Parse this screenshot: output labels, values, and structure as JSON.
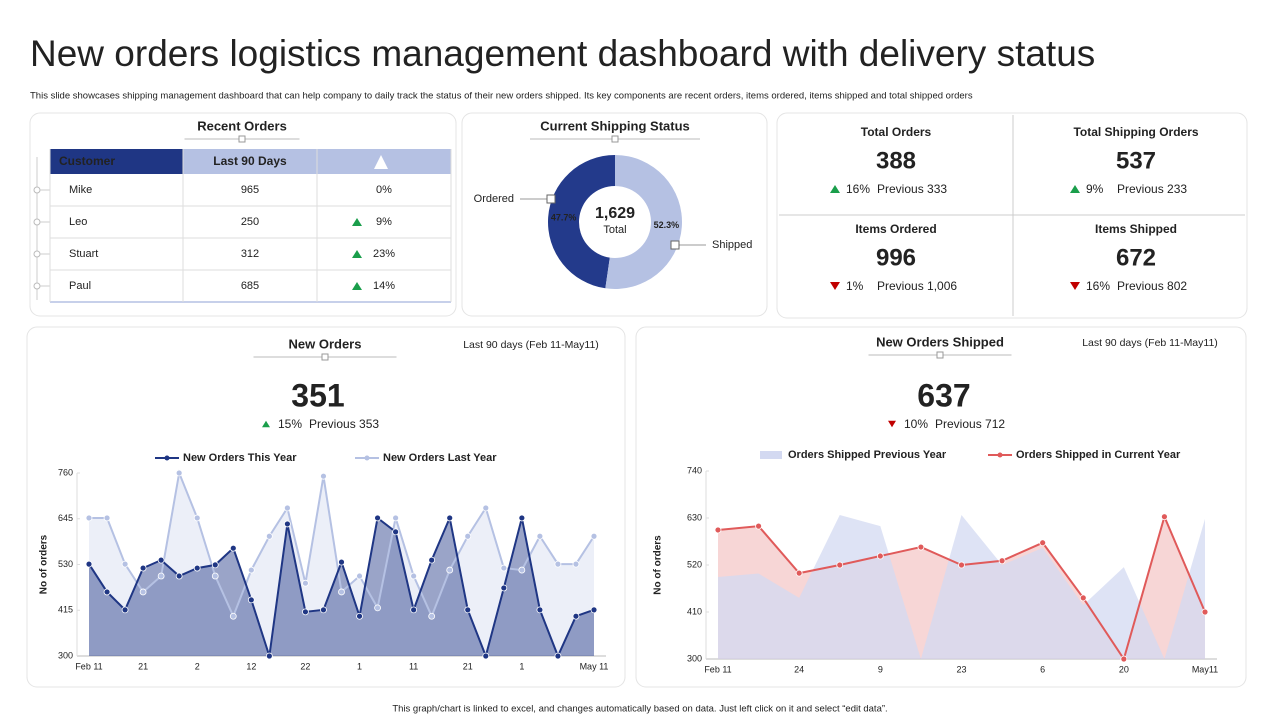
{
  "header": {
    "title": "New orders logistics management dashboard with delivery status",
    "subtitle": "This slide showcases shipping management dashboard that can help company to daily track the status of their new orders shipped. Its key components are recent orders, items ordered, items shipped and total shipped orders"
  },
  "recent_orders": {
    "title": "Recent Orders",
    "columns": [
      "Customer",
      "Last 90 Days"
    ],
    "rows": [
      {
        "customer": "Mike",
        "last_90_days": 965,
        "change": "0%"
      },
      {
        "customer": "Leo",
        "last_90_days": 250,
        "change": "9%",
        "trend": "up"
      },
      {
        "customer": "Stuart",
        "last_90_days": 312,
        "change": "23%",
        "trend": "up"
      },
      {
        "customer": "Paul",
        "last_90_days": 685,
        "change": "14%",
        "trend": "up"
      }
    ]
  },
  "kpis": [
    {
      "label": "Total Orders",
      "value": 388,
      "change": "16%",
      "trend": "up",
      "previous": "Previous 333"
    },
    {
      "label": "Total Shipping Orders",
      "value": 537,
      "change": "9%",
      "trend": "up",
      "previous": "Previous 233"
    },
    {
      "label": "Items Ordered",
      "value": 996,
      "change": "1%",
      "trend": "down",
      "previous": "Previous 1,006"
    },
    {
      "label": "Items Shipped",
      "value": 672,
      "change": "16%",
      "trend": "down",
      "previous": "Previous 802"
    }
  ],
  "chart_data": [
    {
      "type": "pie",
      "title": "Current Shipping Status",
      "donut": true,
      "categories": [
        "Ordered",
        "Shipped"
      ],
      "values": [
        47.7,
        52.3
      ],
      "value_labels": [
        "47.7%",
        "52.3%"
      ],
      "colors": [
        "#233a8b",
        "#b5c1e3"
      ],
      "center_label": "1,629",
      "center_sublabel": "Total"
    },
    {
      "type": "line",
      "title": "New Orders",
      "subtitle": "Last 90 days (Feb 11-May11)",
      "kpi_value": 351,
      "kpi_change": "15%",
      "kpi_trend": "up",
      "kpi_previous": "Previous 353",
      "ylabel": "No of orders",
      "categories": [
        "Feb 11",
        null,
        null,
        "21",
        null,
        null,
        "2",
        null,
        null,
        "12",
        null,
        null,
        "22",
        null,
        null,
        "1",
        null,
        null,
        "11",
        null,
        null,
        "21",
        null,
        null,
        "1",
        null,
        null,
        null,
        "May 11"
      ],
      "series": [
        {
          "name": "New Orders This Year",
          "color": "#1f3684",
          "style": "line",
          "values": [
            531,
            461,
            416,
            521,
            541,
            501,
            521,
            529,
            571,
            441,
            300,
            632,
            411,
            416,
            536,
            400,
            647,
            612,
            416,
            541,
            647,
            416,
            300,
            471,
            647,
            416,
            300,
            400,
            416
          ]
        },
        {
          "name": "New Orders Last Year",
          "color": "#b5c1e3",
          "style": "line",
          "values": [
            647,
            647,
            531,
            461,
            501,
            760,
            647,
            501,
            400,
            516,
            601,
            672,
            483,
            752,
            461,
            501,
            421,
            647,
            501,
            400,
            516,
            601,
            672,
            521,
            516,
            601,
            531,
            531,
            601
          ]
        }
      ],
      "ylim": [
        300,
        760
      ],
      "yticks": [
        300,
        415,
        530,
        645,
        760
      ]
    },
    {
      "type": "line",
      "title": "New Orders Shipped",
      "subtitle": "Last 90 days (Feb 11-May11)",
      "kpi_value": 637,
      "kpi_change": "10%",
      "kpi_trend": "down",
      "kpi_previous": "Previous 712",
      "ylabel": "No of orders",
      "categories": [
        "Feb 11",
        null,
        "24",
        null,
        "9",
        null,
        "23",
        null,
        "6",
        null,
        "20",
        null,
        "May11"
      ],
      "series": [
        {
          "name": "Orders Shipped Previous Year",
          "color": "#d3d9f1",
          "style": "area",
          "values": [
            492,
            500,
            443,
            637,
            611,
            300,
            637,
            520,
            560,
            426,
            515,
            300,
            628
          ]
        },
        {
          "name": "Orders Shipped in Current Year",
          "color": "#e05a5a",
          "style": "line",
          "values": [
            602,
            611,
            501,
            520,
            541,
            562,
            520,
            530,
            572,
            443,
            300,
            633,
            410
          ]
        }
      ],
      "ylim": [
        300,
        740
      ],
      "yticks": [
        300,
        410,
        520,
        630,
        740
      ]
    }
  ],
  "footer": "This graph/chart is linked to excel, and changes automatically based on data. Just left click on it and select “edit data”."
}
